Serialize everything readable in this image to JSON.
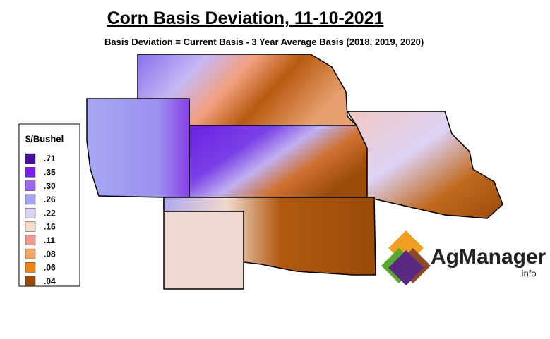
{
  "header": {
    "title": "Corn Basis Deviation, 11-10-2021",
    "subtitle": "Basis Deviation = Current Basis - 3 Year Average Basis (2018, 2019, 2020)"
  },
  "legend": {
    "title": "$/Bushel",
    "items": [
      {
        "label": ".71",
        "color": "#4a0e9c"
      },
      {
        "label": ".35",
        "color": "#7a1fe6"
      },
      {
        "label": ".30",
        "color": "#a066ee"
      },
      {
        "label": ".26",
        "color": "#a4a4f2"
      },
      {
        "label": ".22",
        "color": "#ddd2f5"
      },
      {
        "label": ".16",
        "color": "#f6ddcb"
      },
      {
        "label": ".11",
        "color": "#ef9a8c"
      },
      {
        "label": ".08",
        "color": "#f2a462"
      },
      {
        "label": ".06",
        "color": "#f08212"
      },
      {
        "label": ".04",
        "color": "#9a4b08"
      }
    ]
  },
  "logo": {
    "name": "AgManager",
    "suffix": ".info"
  }
}
